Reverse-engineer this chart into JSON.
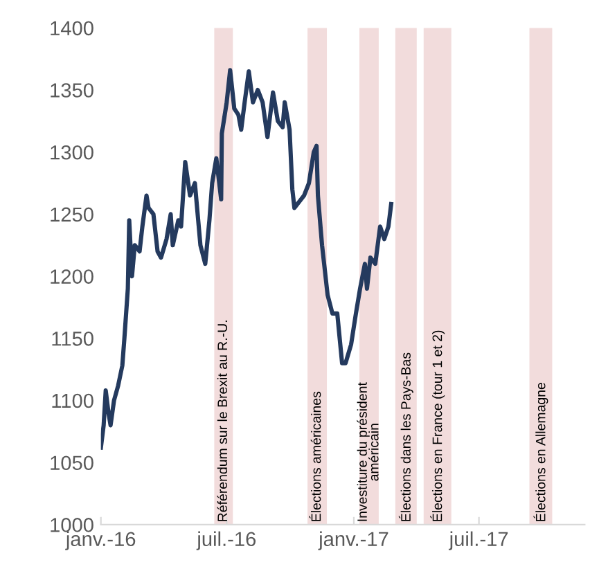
{
  "chart_data": {
    "type": "line",
    "x": [
      "2016-01-01",
      "2016-01-05",
      "2016-01-08",
      "2016-01-12",
      "2016-01-15",
      "2016-01-20",
      "2016-01-26",
      "2016-02-01",
      "2016-02-04",
      "2016-02-09",
      "2016-02-11",
      "2016-02-15",
      "2016-02-19",
      "2016-02-26",
      "2016-03-01",
      "2016-03-07",
      "2016-03-10",
      "2016-03-17",
      "2016-03-23",
      "2016-03-28",
      "2016-04-05",
      "2016-04-11",
      "2016-04-14",
      "2016-04-22",
      "2016-04-26",
      "2016-05-02",
      "2016-05-09",
      "2016-05-16",
      "2016-05-24",
      "2016-05-31",
      "2016-06-06",
      "2016-06-10",
      "2016-06-16",
      "2016-06-23",
      "2016-06-24",
      "2016-07-01",
      "2016-07-06",
      "2016-07-12",
      "2016-07-18",
      "2016-07-22",
      "2016-07-27",
      "2016-08-02",
      "2016-08-08",
      "2016-08-15",
      "2016-08-22",
      "2016-08-29",
      "2016-09-06",
      "2016-09-13",
      "2016-09-20",
      "2016-09-23",
      "2016-09-30",
      "2016-10-04",
      "2016-10-07",
      "2016-10-14",
      "2016-10-21",
      "2016-10-28",
      "2016-11-04",
      "2016-11-08",
      "2016-11-10",
      "2016-11-16",
      "2016-11-24",
      "2016-12-01",
      "2016-12-08",
      "2016-12-15",
      "2016-12-20",
      "2016-12-28",
      "2017-01-04",
      "2017-01-10",
      "2017-01-17",
      "2017-01-20",
      "2017-01-25",
      "2017-02-01",
      "2017-02-08",
      "2017-02-14",
      "2017-02-20",
      "2017-02-24"
    ],
    "series": [
      {
        "color": "#243a5e",
        "values": [
          1062,
          1080,
          1108,
          1090,
          1080,
          1100,
          1112,
          1128,
          1150,
          1190,
          1245,
          1200,
          1225,
          1220,
          1240,
          1265,
          1255,
          1250,
          1220,
          1215,
          1230,
          1250,
          1225,
          1245,
          1240,
          1292,
          1265,
          1275,
          1225,
          1210,
          1245,
          1275,
          1295,
          1262,
          1315,
          1340,
          1366,
          1335,
          1330,
          1318,
          1340,
          1365,
          1340,
          1350,
          1340,
          1312,
          1348,
          1325,
          1320,
          1340,
          1318,
          1270,
          1255,
          1260,
          1265,
          1275,
          1300,
          1305,
          1265,
          1225,
          1185,
          1170,
          1170,
          1130,
          1130,
          1145,
          1170,
          1190,
          1210,
          1190,
          1215,
          1210,
          1240,
          1230,
          1240,
          1258
        ]
      }
    ],
    "xlim": [
      "2016-01-01",
      "2017-12-01"
    ],
    "xticks": [
      {
        "value": "2016-01-01",
        "label": "janv.-16"
      },
      {
        "value": "2016-07-01",
        "label": "juil.-16"
      },
      {
        "value": "2017-01-01",
        "label": "janv.-17"
      },
      {
        "value": "2017-07-01",
        "label": "juil.-17"
      }
    ],
    "ylim": [
      1000,
      1400
    ],
    "yticks": [
      1000,
      1050,
      1100,
      1150,
      1200,
      1250,
      1300,
      1350,
      1400
    ],
    "grid": false,
    "legend": false,
    "marker": "none",
    "line_style": "solid",
    "bands": [
      {
        "axis": "x",
        "from": "2016-06-13",
        "to": "2016-07-10",
        "label": "Référendum sur le Brexit au R.-U.",
        "color": "#f2dcdc"
      },
      {
        "axis": "x",
        "from": "2016-10-26",
        "to": "2016-11-23",
        "label": "Élections américaines",
        "color": "#f2dcdc"
      },
      {
        "axis": "x",
        "from": "2017-01-09",
        "to": "2017-02-06",
        "label": "Investiture du président\naméricain",
        "color": "#f2dcdc"
      },
      {
        "axis": "x",
        "from": "2017-03-02",
        "to": "2017-04-02",
        "label": "Élections dans les Pays-Bas",
        "color": "#f2dcdc"
      },
      {
        "axis": "x",
        "from": "2017-04-12",
        "to": "2017-05-22",
        "label": "Élections en France (tour 1 et 2)",
        "color": "#f2dcdc"
      },
      {
        "axis": "x",
        "from": "2017-09-12",
        "to": "2017-10-15",
        "label": "Élections en Allemagne",
        "color": "#f2dcdc"
      }
    ]
  }
}
